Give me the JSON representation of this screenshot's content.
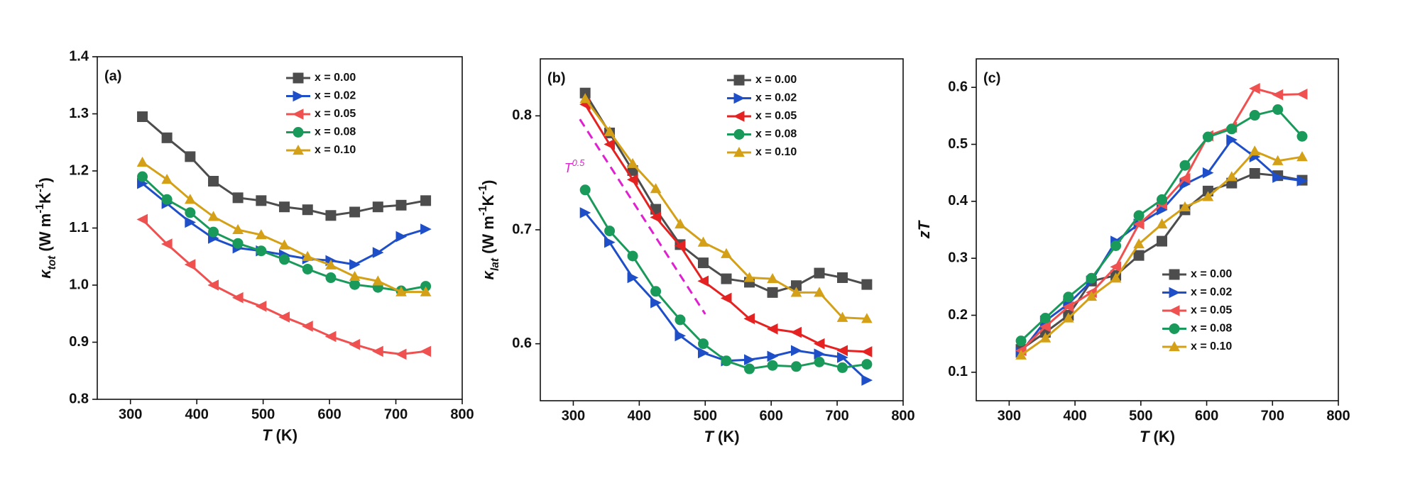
{
  "chart_data": [
    {
      "type": "line",
      "panel_label": "(a)",
      "xlabel_parts": [
        {
          "text": "T",
          "italic": true
        },
        {
          "text": " (K)"
        }
      ],
      "ylabel_parts": [
        {
          "text": "κ",
          "italic": true
        },
        {
          "text": "tot",
          "shift": "sub",
          "italic": true
        },
        {
          "text": " (W m"
        },
        {
          "text": "-1",
          "shift": "sup"
        },
        {
          "text": "K"
        },
        {
          "text": "-1",
          "shift": "sup"
        },
        {
          "text": ")"
        }
      ],
      "x": [
        318,
        355,
        390,
        425,
        462,
        497,
        532,
        567,
        602,
        638,
        673,
        708,
        745
      ],
      "xlim": [
        250,
        800
      ],
      "xticks": [
        300,
        400,
        500,
        600,
        700,
        800
      ],
      "ylim": [
        0.8,
        1.4
      ],
      "yticks": [
        0.8,
        0.9,
        {
          "value": 1.0,
          "label": "1.0"
        },
        1.1,
        1.2,
        1.3,
        1.4
      ],
      "legend": "upper-right",
      "series": [
        {
          "name": "x = 0.00",
          "color": "#4d4d4d",
          "marker": "square",
          "values": [
            1.295,
            1.258,
            1.225,
            1.182,
            1.153,
            1.148,
            1.137,
            1.132,
            1.122,
            1.128,
            1.137,
            1.14,
            1.148
          ]
        },
        {
          "name": "x = 0.02",
          "color": "#1f4fc8",
          "marker": "triangle-right",
          "values": [
            1.178,
            1.143,
            1.11,
            1.082,
            1.065,
            1.06,
            1.053,
            1.046,
            1.043,
            1.036,
            1.057,
            1.085,
            1.098
          ]
        },
        {
          "name": "x = 0.05",
          "color": "#ef5050",
          "marker": "triangle-left",
          "values": [
            1.115,
            1.072,
            1.036,
            1.0,
            0.978,
            0.963,
            0.944,
            0.928,
            0.91,
            0.896,
            0.884,
            0.879,
            0.884
          ]
        },
        {
          "name": "x = 0.08",
          "color": "#1a9a5a",
          "marker": "circle",
          "values": [
            1.19,
            1.15,
            1.127,
            1.093,
            1.073,
            1.06,
            1.045,
            1.028,
            1.013,
            1.001,
            0.996,
            0.99,
            0.998
          ]
        },
        {
          "name": "x = 0.10",
          "color": "#d4a017",
          "marker": "triangle-up",
          "values": [
            1.215,
            1.185,
            1.15,
            1.12,
            1.097,
            1.088,
            1.07,
            1.05,
            1.035,
            1.015,
            1.007,
            0.988,
            0.988
          ]
        }
      ]
    },
    {
      "type": "line",
      "panel_label": "(b)",
      "xlabel_parts": [
        {
          "text": "T",
          "italic": true
        },
        {
          "text": " (K)"
        }
      ],
      "ylabel_parts": [
        {
          "text": "κ",
          "italic": true
        },
        {
          "text": "lat",
          "shift": "sub",
          "italic": true
        },
        {
          "text": " (W m"
        },
        {
          "text": "-1",
          "shift": "sup"
        },
        {
          "text": "K"
        },
        {
          "text": "-1",
          "shift": "sup"
        },
        {
          "text": ")"
        }
      ],
      "x": [
        318,
        355,
        390,
        425,
        462,
        497,
        532,
        567,
        602,
        638,
        673,
        708,
        745
      ],
      "xlim": [
        250,
        800
      ],
      "xticks": [
        300,
        400,
        500,
        600,
        700,
        800
      ],
      "ylim": [
        0.55,
        0.85
      ],
      "yticks": [
        0.6,
        0.7,
        0.8
      ],
      "legend": "upper-right",
      "annotation_parts": [
        {
          "text": "T",
          "italic": true
        },
        {
          "text": "0.5",
          "shift": "sup",
          "italic": true
        }
      ],
      "guide_line": {
        "x": [
          310,
          500
        ],
        "y": [
          0.797,
          0.626
        ],
        "color": "#e020d0"
      },
      "series": [
        {
          "name": "x = 0.00",
          "color": "#4d4d4d",
          "marker": "square",
          "values": [
            0.82,
            0.785,
            0.752,
            0.718,
            0.687,
            0.671,
            0.657,
            0.654,
            0.645,
            0.651,
            0.662,
            0.658,
            0.652
          ]
        },
        {
          "name": "x = 0.02",
          "color": "#1f4fc8",
          "marker": "triangle-right",
          "values": [
            0.715,
            0.689,
            0.658,
            0.636,
            0.607,
            0.592,
            0.585,
            0.586,
            0.589,
            0.594,
            0.591,
            0.588,
            0.568
          ]
        },
        {
          "name": "x = 0.05",
          "color": "#e52222",
          "marker": "triangle-left",
          "values": [
            0.81,
            0.775,
            0.744,
            0.711,
            0.686,
            0.655,
            0.64,
            0.622,
            0.613,
            0.61,
            0.6,
            0.594,
            0.593
          ]
        },
        {
          "name": "x = 0.08",
          "color": "#1a9a5a",
          "marker": "circle",
          "values": [
            0.735,
            0.699,
            0.677,
            0.646,
            0.621,
            0.6,
            0.585,
            0.578,
            0.581,
            0.58,
            0.584,
            0.579,
            0.582
          ]
        },
        {
          "name": "x = 0.10",
          "color": "#d4a017",
          "marker": "triangle-up",
          "values": [
            0.815,
            0.786,
            0.758,
            0.736,
            0.705,
            0.689,
            0.679,
            0.658,
            0.657,
            0.645,
            0.645,
            0.623,
            0.622
          ]
        }
      ]
    },
    {
      "type": "line",
      "panel_label": "(c)",
      "xlabel_parts": [
        {
          "text": "T",
          "italic": true
        },
        {
          "text": " (K)"
        }
      ],
      "ylabel_parts": [
        {
          "text": "zT",
          "italic": true
        }
      ],
      "x": [
        318,
        355,
        390,
        425,
        462,
        497,
        532,
        567,
        602,
        638,
        673,
        708,
        745
      ],
      "xlim": [
        250,
        800
      ],
      "xticks": [
        300,
        400,
        500,
        600,
        700,
        800
      ],
      "ylim": [
        0.05,
        0.65
      ],
      "yticks": [
        0.1,
        0.2,
        0.3,
        0.4,
        0.5,
        0.6
      ],
      "legend": "lower-right",
      "series": [
        {
          "name": "x = 0.00",
          "color": "#4d4d4d",
          "marker": "square",
          "values": [
            0.14,
            0.17,
            0.2,
            0.26,
            0.27,
            0.305,
            0.33,
            0.385,
            0.418,
            0.432,
            0.449,
            0.445,
            0.437
          ]
        },
        {
          "name": "x = 0.02",
          "color": "#1f4fc8",
          "marker": "triangle-right",
          "values": [
            0.135,
            0.19,
            0.22,
            0.26,
            0.33,
            0.36,
            0.385,
            0.43,
            0.45,
            0.508,
            0.478,
            0.442,
            0.436
          ]
        },
        {
          "name": "x = 0.05",
          "color": "#ef5050",
          "marker": "triangle-left",
          "values": [
            0.138,
            0.18,
            0.215,
            0.24,
            0.285,
            0.36,
            0.395,
            0.44,
            0.515,
            0.53,
            0.598,
            0.587,
            0.588
          ]
        },
        {
          "name": "x = 0.08",
          "color": "#1a9a5a",
          "marker": "circle",
          "values": [
            0.155,
            0.195,
            0.232,
            0.265,
            0.322,
            0.375,
            0.403,
            0.463,
            0.513,
            0.527,
            0.551,
            0.561,
            0.514
          ]
        },
        {
          "name": "x = 0.10",
          "color": "#d4a017",
          "marker": "triangle-up",
          "values": [
            0.13,
            0.16,
            0.195,
            0.233,
            0.265,
            0.325,
            0.36,
            0.39,
            0.408,
            0.443,
            0.488,
            0.471,
            0.478
          ]
        }
      ]
    }
  ]
}
